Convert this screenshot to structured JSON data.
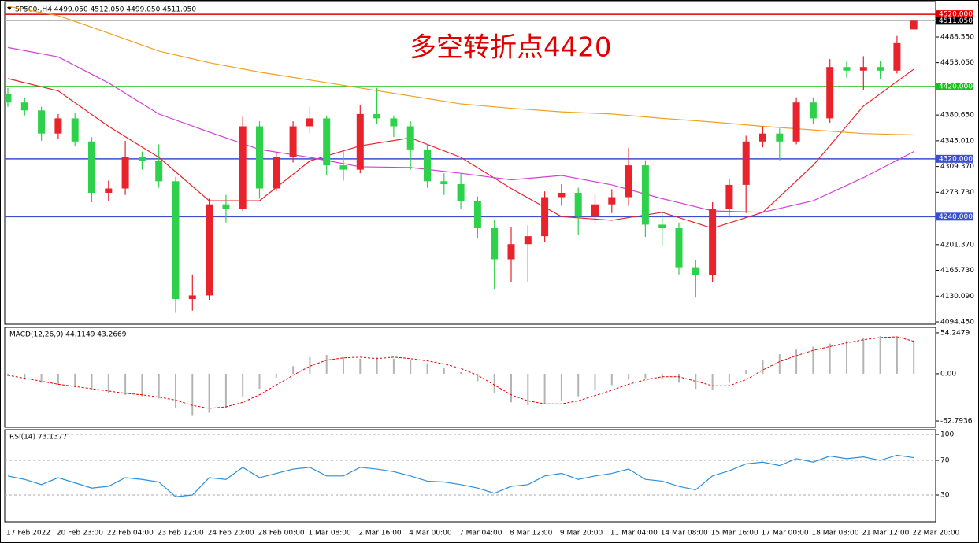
{
  "chart_data": [
    {
      "type": "candlestick",
      "title": "SP500-,H4  4499.050 4512.050 4499.050 4511.050",
      "annotation": "多空转折点4420",
      "categories": [
        "17 Feb 2022",
        null,
        null,
        "20 Feb 23:00",
        null,
        null,
        "22 Feb 04:00",
        null,
        null,
        "23 Feb 12:00",
        null,
        null,
        "24 Feb 20:00",
        null,
        null,
        "28 Feb 00:00",
        null,
        null,
        "1 Mar 08:00",
        null,
        null,
        "2 Mar 16:00",
        null,
        null,
        "4 Mar 00:00",
        null,
        null,
        "7 Mar 04:00",
        null,
        null,
        "8 Mar 12:00",
        null,
        null,
        "9 Mar 20:00",
        null,
        null,
        "11 Mar 04:00",
        null,
        null,
        "14 Mar 08:00",
        null,
        null,
        "15 Mar 16:00",
        null,
        null,
        "17 Mar 00:00",
        null,
        null,
        "18 Mar 08:00",
        null,
        null,
        "21 Mar 12:00",
        null,
        null,
        "22 Mar 20:00"
      ],
      "open": [
        4410,
        4398,
        4387,
        4355,
        4376,
        4344,
        4273,
        4279,
        4322,
        4317,
        4289,
        4126,
        4131,
        4257,
        4251,
        4365,
        4279,
        4322,
        4365,
        4376,
        4311,
        4305,
        4382,
        4376,
        4365,
        4333,
        4289,
        4285,
        4262,
        4224,
        4181,
        4202,
        4213,
        4267,
        4273,
        4240,
        4257,
        4267,
        4311,
        4229,
        4224,
        4170,
        4159,
        4251,
        4284,
        4344,
        4355,
        4344,
        4398,
        4376,
        4447,
        4442,
        4447,
        4442,
        4499.05
      ],
      "high": [
        4418,
        4405,
        4392,
        4382,
        4384,
        4350,
        4290,
        4345,
        4330,
        4340,
        4295,
        4160,
        4265,
        4270,
        4378,
        4372,
        4330,
        4372,
        4392,
        4380,
        4330,
        4395,
        4418,
        4380,
        4372,
        4340,
        4300,
        4300,
        4268,
        4235,
        4225,
        4228,
        4275,
        4285,
        4280,
        4272,
        4278,
        4335,
        4318,
        4248,
        4232,
        4180,
        4260,
        4292,
        4352,
        4365,
        4362,
        4405,
        4405,
        4458,
        4456,
        4462,
        4455,
        4490,
        4512.05
      ],
      "low": [
        4392,
        4380,
        4345,
        4348,
        4338,
        4260,
        4262,
        4270,
        4305,
        4280,
        4107,
        4110,
        4125,
        4232,
        4248,
        4265,
        4275,
        4315,
        4355,
        4298,
        4290,
        4300,
        4368,
        4350,
        4305,
        4280,
        4270,
        4250,
        4210,
        4140,
        4150,
        4150,
        4205,
        4255,
        4215,
        4230,
        4245,
        4255,
        4212,
        4200,
        4160,
        4128,
        4150,
        4240,
        4245,
        4336,
        4318,
        4340,
        4368,
        4370,
        4432,
        4415,
        4430,
        4438,
        4499.05
      ],
      "close": [
        4398,
        4387,
        4355,
        4376,
        4344,
        4273,
        4279,
        4322,
        4317,
        4289,
        4126,
        4131,
        4257,
        4251,
        4365,
        4279,
        4322,
        4365,
        4376,
        4311,
        4305,
        4382,
        4376,
        4365,
        4333,
        4289,
        4285,
        4262,
        4224,
        4181,
        4202,
        4213,
        4267,
        4273,
        4240,
        4257,
        4267,
        4311,
        4229,
        4224,
        4170,
        4159,
        4251,
        4284,
        4344,
        4355,
        4344,
        4398,
        4376,
        4447,
        4442,
        4447,
        4442,
        4480,
        4511.05
      ],
      "up_color": "#e8232b",
      "down_color": "#2ed14a",
      "series": [
        {
          "color": "#e8232b",
          "x": [
            0,
            3,
            6,
            9,
            12,
            15,
            18,
            21,
            24,
            27,
            30,
            33,
            36,
            39,
            42,
            45,
            48,
            51,
            54
          ],
          "values": [
            4431,
            4414,
            4365,
            4322,
            4262,
            4262,
            4317,
            4338,
            4349,
            4322,
            4279,
            4240,
            4235,
            4246,
            4224,
            4246,
            4311,
            4393,
            4444
          ]
        },
        {
          "color": "#d23fd6",
          "x": [
            0,
            3,
            6,
            9,
            12,
            15,
            18,
            21,
            24,
            27,
            30,
            33,
            36,
            39,
            42,
            45,
            48,
            51,
            54
          ],
          "values": [
            4474,
            4461,
            4425,
            4382,
            4357,
            4333,
            4322,
            4309,
            4308,
            4300,
            4291,
            4297,
            4284,
            4265,
            4248,
            4246,
            4262,
            4294,
            4330
          ]
        },
        {
          "color": "#f0a020",
          "x": [
            0,
            3,
            6,
            9,
            12,
            15,
            18,
            21,
            24,
            27,
            30,
            33,
            36,
            39,
            42,
            45,
            48,
            51,
            54
          ],
          "values": [
            4531,
            4518,
            4494,
            4469,
            4453,
            4440,
            4429,
            4418,
            4407,
            4396,
            4390,
            4385,
            4382,
            4376,
            4371,
            4365,
            4360,
            4355,
            4353
          ]
        }
      ],
      "levels": [
        {
          "value": 4520,
          "label": "4520.000",
          "color": "#e00000"
        },
        {
          "value": 4420,
          "label": "4420.000",
          "color": "#19c019"
        },
        {
          "value": 4320,
          "label": "4320.000",
          "color": "#3a4fd0"
        },
        {
          "value": 4240,
          "label": "4240.000",
          "color": "#3a4fd0"
        }
      ],
      "last_price": {
        "value": 4511.05,
        "label": "4511.050",
        "color": "#b0b0b0"
      },
      "ylim": [
        4091.2,
        4524.5
      ],
      "yticks": [
        {
          "value": 4488.55,
          "label": "4488.550"
        },
        {
          "value": 4453.05,
          "label": "4453.050"
        },
        {
          "value": 4380.65,
          "label": "4380.650"
        },
        {
          "value": 4345.01,
          "label": "4345.010"
        },
        {
          "value": 4309.37,
          "label": "4309.370"
        },
        {
          "value": 4273.73,
          "label": "4273.730"
        },
        {
          "value": 4201.37,
          "label": "4201.370"
        },
        {
          "value": 4165.73,
          "label": "4165.730"
        },
        {
          "value": 4130.09,
          "label": "4130.090"
        },
        {
          "value": 4094.45,
          "label": "4094.450"
        }
      ]
    },
    {
      "type": "macd",
      "title": "MACD(12,26,9) 44.1149 43.2669",
      "values": [
        -3,
        -8,
        -12,
        -15,
        -18,
        -22,
        -26,
        -28,
        -30,
        -33,
        -45,
        -55,
        -52,
        -45,
        -30,
        -20,
        -5,
        10,
        22,
        25,
        22,
        20,
        22,
        20,
        18,
        14,
        8,
        2,
        -10,
        -25,
        -38,
        -42,
        -40,
        -36,
        -30,
        -22,
        -15,
        -8,
        -6,
        -8,
        -12,
        -20,
        -22,
        -12,
        5,
        18,
        26,
        32,
        36,
        40,
        44,
        48,
        50,
        48,
        44
      ],
      "signal": [
        -2,
        -6,
        -10,
        -14,
        -17,
        -20,
        -23,
        -26,
        -28,
        -31,
        -35,
        -42,
        -46,
        -44,
        -38,
        -28,
        -15,
        -2,
        10,
        18,
        21,
        22,
        20,
        22,
        20,
        17,
        13,
        7,
        -2,
        -15,
        -28,
        -36,
        -40,
        -40,
        -36,
        -29,
        -22,
        -14,
        -8,
        -4,
        -4,
        -10,
        -16,
        -16,
        -8,
        5,
        16,
        24,
        31,
        36,
        41,
        45,
        48,
        49,
        43
      ],
      "color": "#b4b4b4",
      "signal_color": "#e00000",
      "ylim": [
        -71.1,
        61.5
      ],
      "yticks": [
        54.2479,
        {
          "value": 0,
          "label": "0.00"
        },
        -62.7936
      ]
    },
    {
      "type": "line",
      "title": "RSI(14) 73.1377",
      "values": [
        52,
        48,
        42,
        50,
        44,
        38,
        40,
        50,
        48,
        45,
        28,
        30,
        50,
        48,
        62,
        50,
        55,
        60,
        62,
        52,
        52,
        62,
        60,
        57,
        52,
        46,
        45,
        42,
        38,
        32,
        40,
        42,
        52,
        55,
        48,
        52,
        55,
        60,
        48,
        46,
        40,
        36,
        52,
        58,
        66,
        68,
        64,
        72,
        68,
        75,
        72,
        74,
        70,
        76,
        73.1377
      ],
      "color": "#2a8fdc",
      "ylim": [
        -0.9,
        105.5
      ],
      "yticks": [
        100,
        70,
        30
      ],
      "grid": true
    }
  ]
}
